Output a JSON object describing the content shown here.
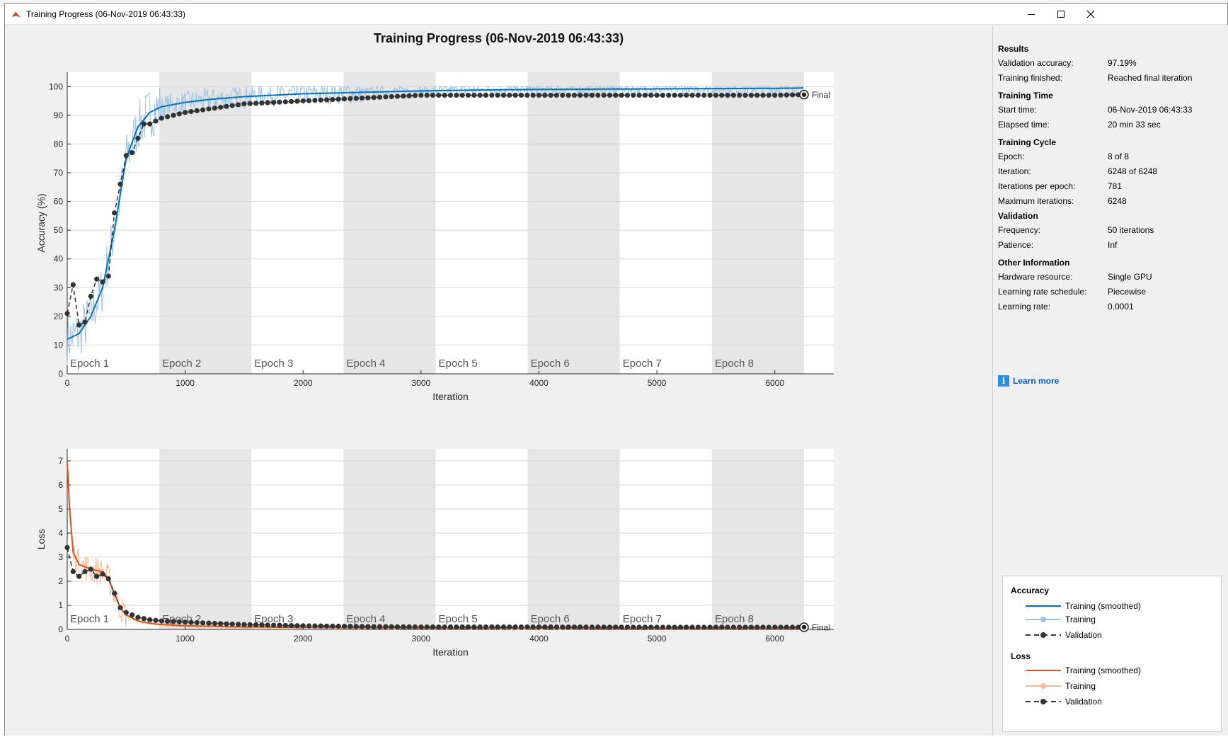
{
  "window": {
    "title": "Training Progress (06-Nov-2019 06:43:33)"
  },
  "figure_title": "Training Progress (06-Nov-2019 06:43:33)",
  "results": {
    "title": "Results",
    "rows": [
      {
        "label": "Validation accuracy:",
        "value": "97.19%"
      },
      {
        "label": "Training finished:",
        "value": "Reached final iteration"
      }
    ]
  },
  "training_time": {
    "title": "Training Time",
    "rows": [
      {
        "label": "Start time:",
        "value": "06-Nov-2019 06:43:33"
      },
      {
        "label": "Elapsed time:",
        "value": "20 min 33 sec"
      }
    ]
  },
  "training_cycle": {
    "title": "Training Cycle",
    "rows": [
      {
        "label": "Epoch:",
        "value": "8 of 8"
      },
      {
        "label": "Iteration:",
        "value": "6248 of 6248"
      },
      {
        "label": "Iterations per epoch:",
        "value": "781"
      },
      {
        "label": "Maximum iterations:",
        "value": "6248"
      }
    ]
  },
  "validation": {
    "title": "Validation",
    "rows": [
      {
        "label": "Frequency:",
        "value": "50 iterations"
      },
      {
        "label": "Patience:",
        "value": "Inf"
      }
    ]
  },
  "other_info": {
    "title": "Other Information",
    "rows": [
      {
        "label": "Hardware resource:",
        "value": "Single GPU"
      },
      {
        "label": "Learning rate schedule:",
        "value": "Piecewise"
      },
      {
        "label": "Learning rate:",
        "value": "0.0001"
      }
    ]
  },
  "learn_more": "Learn more",
  "legend": {
    "accuracy_title": "Accuracy",
    "loss_title": "Loss",
    "smoothed": "Training (smoothed)",
    "training": "Training",
    "validation": "Validation"
  },
  "colors": {
    "acc_smoothed": "#0072bd",
    "acc_raw": "#9dc3e6",
    "loss_smoothed": "#d95319",
    "loss_raw": "#f2b99d",
    "validation": "#333333",
    "epoch_band": "#e6e6e6"
  },
  "chart_data": [
    {
      "type": "line",
      "title": "",
      "xlabel": "Iteration",
      "ylabel": "Accuracy (%)",
      "xlim": [
        0,
        6500
      ],
      "ylim": [
        0,
        105
      ],
      "xticks": [
        0,
        1000,
        2000,
        3000,
        4000,
        5000,
        6000
      ],
      "yticks": [
        0,
        10,
        20,
        30,
        40,
        50,
        60,
        70,
        80,
        90,
        100
      ],
      "epoch_labels": [
        "Epoch 1",
        "Epoch 2",
        "Epoch 3",
        "Epoch 4",
        "Epoch 5",
        "Epoch 6",
        "Epoch 7",
        "Epoch 8"
      ],
      "iterations_per_epoch": 781,
      "final_iteration": 6248,
      "final_label": "Final",
      "series": [
        {
          "name": "Training (smoothed)",
          "x": [
            0,
            100,
            200,
            300,
            400,
            500,
            600,
            700,
            800,
            1000,
            1200,
            1500,
            2000,
            2500,
            3000,
            3500,
            4000,
            4500,
            5000,
            5500,
            6000,
            6248
          ],
          "values": [
            12,
            14,
            20,
            30,
            50,
            75,
            86,
            91,
            93,
            94.5,
            95.5,
            96.5,
            97.5,
            98,
            98.5,
            98.8,
            99,
            99.1,
            99.2,
            99.3,
            99.4,
            99.5
          ]
        },
        {
          "name": "Validation",
          "x": [
            0,
            50,
            100,
            150,
            200,
            250,
            300,
            350,
            400,
            450,
            500,
            550,
            600,
            650,
            700,
            800,
            1000,
            1500,
            2000,
            2500,
            3000,
            3500,
            4000,
            4500,
            5000,
            5500,
            6000,
            6248
          ],
          "values": [
            21,
            31,
            17,
            18,
            27,
            33,
            32,
            34,
            56,
            66,
            76,
            77,
            82,
            87,
            87,
            89,
            91,
            94,
            95,
            96,
            97,
            97,
            97,
            97,
            97,
            97,
            97,
            97.19
          ]
        }
      ]
    },
    {
      "type": "line",
      "title": "",
      "xlabel": "Iteration",
      "ylabel": "Loss",
      "xlim": [
        0,
        6500
      ],
      "ylim": [
        0,
        7.5
      ],
      "xticks": [
        0,
        1000,
        2000,
        3000,
        4000,
        5000,
        6000
      ],
      "yticks": [
        0,
        1,
        2,
        3,
        4,
        5,
        6,
        7
      ],
      "epoch_labels": [
        "Epoch 1",
        "Epoch 2",
        "Epoch 3",
        "Epoch 4",
        "Epoch 5",
        "Epoch 6",
        "Epoch 7",
        "Epoch 8"
      ],
      "iterations_per_epoch": 781,
      "final_iteration": 6248,
      "final_label": "Final",
      "series": [
        {
          "name": "Training (smoothed)",
          "x": [
            0,
            20,
            50,
            100,
            200,
            300,
            350,
            400,
            450,
            500,
            600,
            700,
            800,
            1000,
            1500,
            2000,
            3000,
            4000,
            5000,
            6248
          ],
          "values": [
            7.0,
            5.0,
            3.2,
            2.7,
            2.5,
            2.4,
            2.1,
            1.5,
            0.9,
            0.6,
            0.35,
            0.25,
            0.2,
            0.15,
            0.1,
            0.08,
            0.06,
            0.05,
            0.04,
            0.03
          ]
        },
        {
          "name": "Validation",
          "x": [
            0,
            50,
            100,
            150,
            200,
            250,
            300,
            350,
            400,
            450,
            500,
            550,
            600,
            650,
            700,
            800,
            1000,
            1500,
            2000,
            2500,
            3000,
            4000,
            5000,
            6248
          ],
          "values": [
            3.4,
            2.4,
            2.2,
            2.4,
            2.5,
            2.2,
            2.3,
            2.1,
            1.5,
            0.9,
            0.7,
            0.6,
            0.5,
            0.45,
            0.4,
            0.35,
            0.3,
            0.2,
            0.15,
            0.12,
            0.1,
            0.1,
            0.09,
            0.09
          ]
        }
      ]
    }
  ]
}
